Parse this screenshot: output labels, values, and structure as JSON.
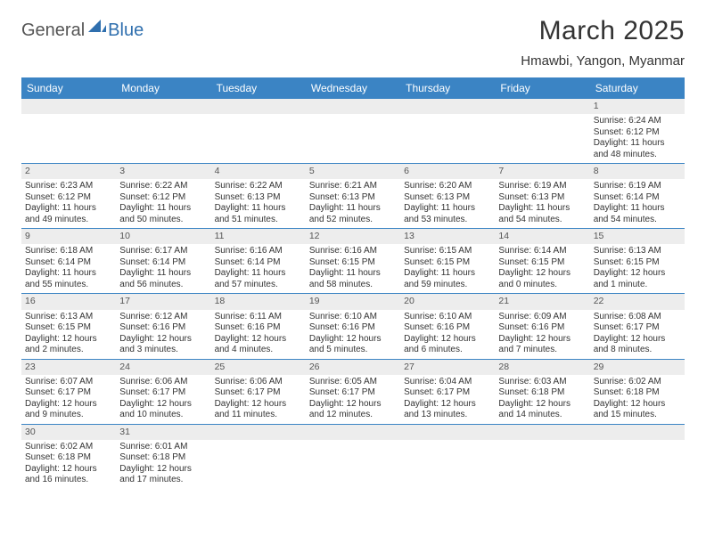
{
  "logo": {
    "text1": "General",
    "text2": "Blue"
  },
  "title": "March 2025",
  "location": "Hmawbi, Yangon, Myanmar",
  "colors": {
    "header_bg": "#3b84c4",
    "header_text": "#ffffff",
    "row_divider": "#3b84c4",
    "daynum_bg": "#ededed",
    "page_bg": "#ffffff",
    "logo_blue": "#2f6fae"
  },
  "weekdays": [
    "Sunday",
    "Monday",
    "Tuesday",
    "Wednesday",
    "Thursday",
    "Friday",
    "Saturday"
  ],
  "weeks": [
    [
      null,
      null,
      null,
      null,
      null,
      null,
      {
        "n": "1",
        "sr": "Sunrise: 6:24 AM",
        "ss": "Sunset: 6:12 PM",
        "dl": "Daylight: 11 hours and 48 minutes."
      }
    ],
    [
      {
        "n": "2",
        "sr": "Sunrise: 6:23 AM",
        "ss": "Sunset: 6:12 PM",
        "dl": "Daylight: 11 hours and 49 minutes."
      },
      {
        "n": "3",
        "sr": "Sunrise: 6:22 AM",
        "ss": "Sunset: 6:12 PM",
        "dl": "Daylight: 11 hours and 50 minutes."
      },
      {
        "n": "4",
        "sr": "Sunrise: 6:22 AM",
        "ss": "Sunset: 6:13 PM",
        "dl": "Daylight: 11 hours and 51 minutes."
      },
      {
        "n": "5",
        "sr": "Sunrise: 6:21 AM",
        "ss": "Sunset: 6:13 PM",
        "dl": "Daylight: 11 hours and 52 minutes."
      },
      {
        "n": "6",
        "sr": "Sunrise: 6:20 AM",
        "ss": "Sunset: 6:13 PM",
        "dl": "Daylight: 11 hours and 53 minutes."
      },
      {
        "n": "7",
        "sr": "Sunrise: 6:19 AM",
        "ss": "Sunset: 6:13 PM",
        "dl": "Daylight: 11 hours and 54 minutes."
      },
      {
        "n": "8",
        "sr": "Sunrise: 6:19 AM",
        "ss": "Sunset: 6:14 PM",
        "dl": "Daylight: 11 hours and 54 minutes."
      }
    ],
    [
      {
        "n": "9",
        "sr": "Sunrise: 6:18 AM",
        "ss": "Sunset: 6:14 PM",
        "dl": "Daylight: 11 hours and 55 minutes."
      },
      {
        "n": "10",
        "sr": "Sunrise: 6:17 AM",
        "ss": "Sunset: 6:14 PM",
        "dl": "Daylight: 11 hours and 56 minutes."
      },
      {
        "n": "11",
        "sr": "Sunrise: 6:16 AM",
        "ss": "Sunset: 6:14 PM",
        "dl": "Daylight: 11 hours and 57 minutes."
      },
      {
        "n": "12",
        "sr": "Sunrise: 6:16 AM",
        "ss": "Sunset: 6:15 PM",
        "dl": "Daylight: 11 hours and 58 minutes."
      },
      {
        "n": "13",
        "sr": "Sunrise: 6:15 AM",
        "ss": "Sunset: 6:15 PM",
        "dl": "Daylight: 11 hours and 59 minutes."
      },
      {
        "n": "14",
        "sr": "Sunrise: 6:14 AM",
        "ss": "Sunset: 6:15 PM",
        "dl": "Daylight: 12 hours and 0 minutes."
      },
      {
        "n": "15",
        "sr": "Sunrise: 6:13 AM",
        "ss": "Sunset: 6:15 PM",
        "dl": "Daylight: 12 hours and 1 minute."
      }
    ],
    [
      {
        "n": "16",
        "sr": "Sunrise: 6:13 AM",
        "ss": "Sunset: 6:15 PM",
        "dl": "Daylight: 12 hours and 2 minutes."
      },
      {
        "n": "17",
        "sr": "Sunrise: 6:12 AM",
        "ss": "Sunset: 6:16 PM",
        "dl": "Daylight: 12 hours and 3 minutes."
      },
      {
        "n": "18",
        "sr": "Sunrise: 6:11 AM",
        "ss": "Sunset: 6:16 PM",
        "dl": "Daylight: 12 hours and 4 minutes."
      },
      {
        "n": "19",
        "sr": "Sunrise: 6:10 AM",
        "ss": "Sunset: 6:16 PM",
        "dl": "Daylight: 12 hours and 5 minutes."
      },
      {
        "n": "20",
        "sr": "Sunrise: 6:10 AM",
        "ss": "Sunset: 6:16 PM",
        "dl": "Daylight: 12 hours and 6 minutes."
      },
      {
        "n": "21",
        "sr": "Sunrise: 6:09 AM",
        "ss": "Sunset: 6:16 PM",
        "dl": "Daylight: 12 hours and 7 minutes."
      },
      {
        "n": "22",
        "sr": "Sunrise: 6:08 AM",
        "ss": "Sunset: 6:17 PM",
        "dl": "Daylight: 12 hours and 8 minutes."
      }
    ],
    [
      {
        "n": "23",
        "sr": "Sunrise: 6:07 AM",
        "ss": "Sunset: 6:17 PM",
        "dl": "Daylight: 12 hours and 9 minutes."
      },
      {
        "n": "24",
        "sr": "Sunrise: 6:06 AM",
        "ss": "Sunset: 6:17 PM",
        "dl": "Daylight: 12 hours and 10 minutes."
      },
      {
        "n": "25",
        "sr": "Sunrise: 6:06 AM",
        "ss": "Sunset: 6:17 PM",
        "dl": "Daylight: 12 hours and 11 minutes."
      },
      {
        "n": "26",
        "sr": "Sunrise: 6:05 AM",
        "ss": "Sunset: 6:17 PM",
        "dl": "Daylight: 12 hours and 12 minutes."
      },
      {
        "n": "27",
        "sr": "Sunrise: 6:04 AM",
        "ss": "Sunset: 6:17 PM",
        "dl": "Daylight: 12 hours and 13 minutes."
      },
      {
        "n": "28",
        "sr": "Sunrise: 6:03 AM",
        "ss": "Sunset: 6:18 PM",
        "dl": "Daylight: 12 hours and 14 minutes."
      },
      {
        "n": "29",
        "sr": "Sunrise: 6:02 AM",
        "ss": "Sunset: 6:18 PM",
        "dl": "Daylight: 12 hours and 15 minutes."
      }
    ],
    [
      {
        "n": "30",
        "sr": "Sunrise: 6:02 AM",
        "ss": "Sunset: 6:18 PM",
        "dl": "Daylight: 12 hours and 16 minutes."
      },
      {
        "n": "31",
        "sr": "Sunrise: 6:01 AM",
        "ss": "Sunset: 6:18 PM",
        "dl": "Daylight: 12 hours and 17 minutes."
      },
      null,
      null,
      null,
      null,
      null
    ]
  ]
}
